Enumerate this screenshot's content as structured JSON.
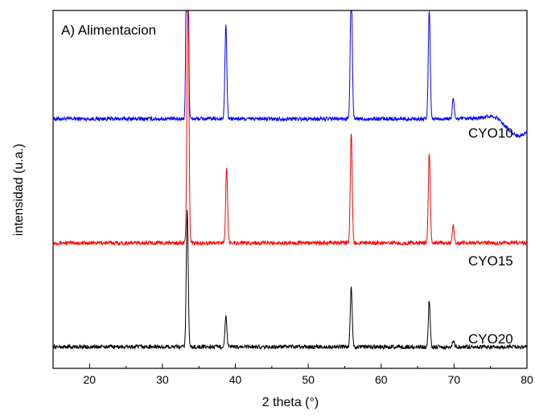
{
  "chart_data": {
    "type": "line",
    "title": "A) Alimentacion",
    "xlabel": "2 theta (°)",
    "ylabel": "intensidad (u.a.)",
    "xlim": [
      15,
      80
    ],
    "x_ticks": [
      20,
      30,
      40,
      50,
      60,
      70,
      80
    ],
    "stacked_offset": true,
    "grid": false,
    "series": [
      {
        "name": "CYO10",
        "color": "#0000ff",
        "baseline": 0.72,
        "peaks": [
          {
            "x": 33.4,
            "height": 1.0
          },
          {
            "x": 38.7,
            "height": 0.28
          },
          {
            "x": 55.9,
            "height": 0.42
          },
          {
            "x": 66.6,
            "height": 0.33
          },
          {
            "x": 69.9,
            "height": 0.06
          }
        ],
        "dip": {
          "x": 78.8,
          "depth": 0.05
        }
      },
      {
        "name": "CYO15",
        "color": "#ff0000",
        "baseline": 0.35,
        "peaks": [
          {
            "x": 33.5,
            "height": 0.78
          },
          {
            "x": 38.8,
            "height": 0.22
          },
          {
            "x": 55.9,
            "height": 0.33
          },
          {
            "x": 66.6,
            "height": 0.27
          },
          {
            "x": 69.9,
            "height": 0.05
          }
        ]
      },
      {
        "name": "CYO20",
        "color": "#000000",
        "baseline": 0.04,
        "peaks": [
          {
            "x": 33.4,
            "height": 0.41
          },
          {
            "x": 38.7,
            "height": 0.09
          },
          {
            "x": 55.9,
            "height": 0.18
          },
          {
            "x": 66.6,
            "height": 0.14
          },
          {
            "x": 69.9,
            "height": 0.02
          }
        ]
      }
    ]
  }
}
